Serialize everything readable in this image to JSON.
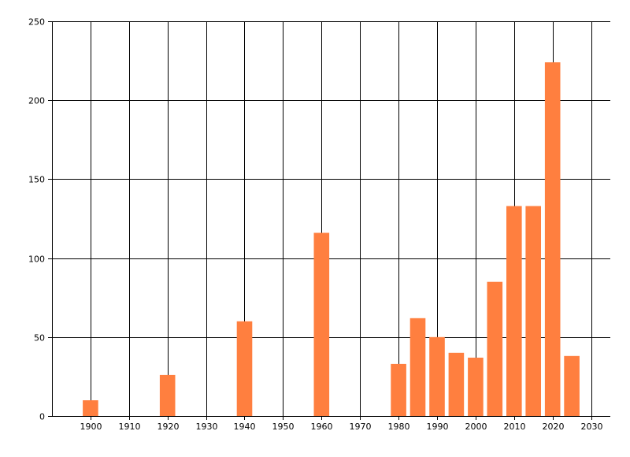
{
  "colors": {
    "bar": "#FF7F3F",
    "grid": "#000000",
    "axis": "#000000",
    "background": "#ffffff"
  },
  "chart_data": {
    "type": "bar",
    "title": "",
    "xlabel": "",
    "ylabel": "",
    "grid": true,
    "legend": "none",
    "xlim": [
      1890,
      2035
    ],
    "ylim": [
      0,
      250
    ],
    "x_ticks": [
      1900,
      1910,
      1920,
      1930,
      1940,
      1950,
      1960,
      1970,
      1980,
      1990,
      2000,
      2010,
      2020,
      2030
    ],
    "y_ticks": [
      0,
      50,
      100,
      150,
      200,
      250
    ],
    "x_tick_labels": [
      "1900",
      "1910",
      "1920",
      "1930",
      "1940",
      "1950",
      "1960",
      "1970",
      "1980",
      "1990",
      "2000",
      "2010",
      "2020",
      "2030"
    ],
    "y_tick_labels": [
      "0",
      "50",
      "100",
      "150",
      "200",
      "250"
    ],
    "bar_width_years": 4,
    "x": [
      1900,
      1920,
      1940,
      1960,
      1980,
      1985,
      1990,
      1995,
      2000,
      2005,
      2010,
      2015,
      2020,
      2025
    ],
    "values": [
      10,
      26,
      60,
      116,
      33,
      62,
      50,
      40,
      37,
      85,
      133,
      133,
      224,
      38
    ]
  }
}
